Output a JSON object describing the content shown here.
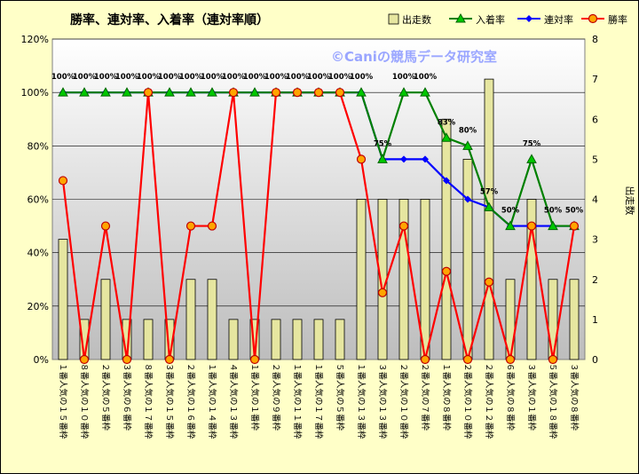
{
  "chart_data": {
    "type": "bar+line",
    "title": "勝率、連対率、入着率（連対率順）",
    "watermark": "©Caniの競馬データ研究室",
    "ylabel_right": "出走数",
    "y_left_ticks": [
      "0%",
      "20%",
      "40%",
      "60%",
      "80%",
      "100%",
      "120%"
    ],
    "y_right_ticks": [
      "0",
      "1",
      "2",
      "3",
      "4",
      "5",
      "6",
      "7",
      "8"
    ],
    "ylim_left": [
      0,
      120
    ],
    "ylim_right": [
      0,
      8
    ],
    "grid": true,
    "legend_position": "top",
    "categories": [
      "１番人気の１５番枠",
      "８番人気の１０番枠",
      "２番人気の５番枠",
      "３番人気の６番枠",
      "８番人気の１７番枠",
      "３番人気の１５番枠",
      "２番人気の１６番枠",
      "１番人気の１４番枠",
      "４番人気の１３番枠",
      "１番人気の１番枠",
      "２番人気の９番枠",
      "１番人気の１１番枠",
      "１番人気の１７番枠",
      "５番人気の５番枠",
      "１番人気の１３番枠",
      "３番人気の１３番枠",
      "２番人気の１０番枠",
      "２番人気の７番枠",
      "１番人気の８番枠",
      "２番人気の１０番枠",
      "２番人気の１２番枠",
      "６番人気の８番枠",
      "３番人気の１番枠",
      "５番人気の１８番枠",
      "３番人気の８番枠"
    ],
    "series": [
      {
        "name": "出走数",
        "type": "bar",
        "axis": "right",
        "color": "#e6e6a0",
        "values": [
          3,
          1,
          2,
          1,
          1,
          1,
          2,
          2,
          1,
          1,
          1,
          1,
          1,
          1,
          4,
          4,
          4,
          4,
          6,
          5,
          7,
          2,
          4,
          2,
          2
        ]
      },
      {
        "name": "入着率",
        "type": "line",
        "axis": "left",
        "color": "#008000",
        "values": [
          100,
          100,
          100,
          100,
          100,
          100,
          100,
          100,
          100,
          100,
          100,
          100,
          100,
          100,
          100,
          75,
          100,
          100,
          83,
          80,
          57,
          50,
          75,
          50,
          50
        ]
      },
      {
        "name": "連対率",
        "type": "line",
        "axis": "left",
        "color": "#0000ff",
        "values": [
          100,
          100,
          100,
          100,
          100,
          100,
          100,
          100,
          100,
          100,
          100,
          100,
          100,
          100,
          100,
          75,
          75,
          75,
          67,
          60,
          57,
          50,
          50,
          50,
          50
        ]
      },
      {
        "name": "勝率",
        "type": "line",
        "axis": "left",
        "color": "#ff0000",
        "values": [
          67,
          0,
          50,
          0,
          100,
          0,
          50,
          50,
          100,
          0,
          100,
          100,
          100,
          100,
          75,
          25,
          50,
          0,
          33,
          0,
          29,
          0,
          50,
          0,
          50
        ]
      }
    ],
    "data_labels": [
      "100%",
      "100%",
      "100%",
      "100%",
      "100%",
      "100%",
      "100%",
      "100%",
      "100%",
      "100%",
      "100%",
      "100%",
      "100%",
      "100%",
      "100%",
      "75%",
      "100%",
      "100%",
      "83%",
      "80%",
      "57%",
      "50%",
      "75%",
      "50%",
      "50%"
    ]
  }
}
